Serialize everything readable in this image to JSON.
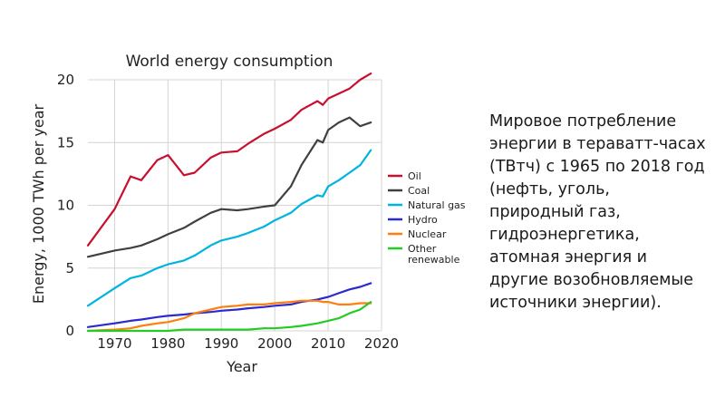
{
  "caption": "Мировое потребление энергии в тераватт-часах (ТВтч) с 1965 по 2018 год (нефть, уголь, природный газ, гидроэнергетика, атомная энергия и другие возобновляемые источники энергии).",
  "chart_data": {
    "type": "line",
    "title": "World energy consumption",
    "xlabel": "Year",
    "ylabel": "Energy, 1000 TWh per year",
    "xlim": [
      1965,
      2020
    ],
    "ylim": [
      0,
      20
    ],
    "xticks": [
      1970,
      1980,
      1990,
      2000,
      2010,
      2020
    ],
    "yticks": [
      0,
      5,
      10,
      15,
      20
    ],
    "grid": true,
    "legend": "right",
    "x": [
      1965,
      1970,
      1973,
      1975,
      1978,
      1980,
      1983,
      1985,
      1988,
      1990,
      1993,
      1995,
      1998,
      2000,
      2003,
      2005,
      2008,
      2009,
      2010,
      2012,
      2014,
      2016,
      2018
    ],
    "series": [
      {
        "name": "Oil",
        "color": "#c8102e",
        "values": [
          6.8,
          9.7,
          12.3,
          12.0,
          13.6,
          14.0,
          12.4,
          12.6,
          13.8,
          14.2,
          14.3,
          14.9,
          15.7,
          16.1,
          16.8,
          17.6,
          18.3,
          18.0,
          18.5,
          18.9,
          19.3,
          20.0,
          20.5
        ]
      },
      {
        "name": "Coal",
        "color": "#404040",
        "values": [
          5.9,
          6.4,
          6.6,
          6.8,
          7.3,
          7.7,
          8.2,
          8.7,
          9.4,
          9.7,
          9.6,
          9.7,
          9.9,
          10.0,
          11.5,
          13.2,
          15.2,
          15.0,
          16.0,
          16.6,
          17.0,
          16.3,
          16.6
        ]
      },
      {
        "name": "Natural gas",
        "color": "#00b4e0",
        "values": [
          2.0,
          3.4,
          4.2,
          4.4,
          5.0,
          5.3,
          5.6,
          6.0,
          6.8,
          7.2,
          7.5,
          7.8,
          8.3,
          8.8,
          9.4,
          10.1,
          10.8,
          10.7,
          11.5,
          12.0,
          12.6,
          13.2,
          14.4
        ]
      },
      {
        "name": "Hydro",
        "color": "#2a2ad0",
        "values": [
          0.3,
          0.6,
          0.8,
          0.9,
          1.1,
          1.2,
          1.3,
          1.4,
          1.5,
          1.6,
          1.7,
          1.8,
          1.9,
          2.0,
          2.1,
          2.3,
          2.5,
          2.6,
          2.7,
          3.0,
          3.3,
          3.5,
          3.8
        ]
      },
      {
        "name": "Nuclear",
        "color": "#ff7f0e",
        "values": [
          0.0,
          0.1,
          0.2,
          0.4,
          0.6,
          0.7,
          1.0,
          1.4,
          1.7,
          1.9,
          2.0,
          2.1,
          2.1,
          2.2,
          2.3,
          2.4,
          2.4,
          2.3,
          2.3,
          2.1,
          2.1,
          2.2,
          2.2
        ]
      },
      {
        "name": "Other renewable",
        "label_lines": [
          "Other",
          "renewable"
        ],
        "color": "#22cc22",
        "values": [
          0.0,
          0.0,
          0.0,
          0.0,
          0.0,
          0.0,
          0.1,
          0.1,
          0.1,
          0.1,
          0.1,
          0.1,
          0.2,
          0.2,
          0.3,
          0.4,
          0.6,
          0.7,
          0.8,
          1.0,
          1.4,
          1.7,
          2.3
        ]
      }
    ]
  }
}
